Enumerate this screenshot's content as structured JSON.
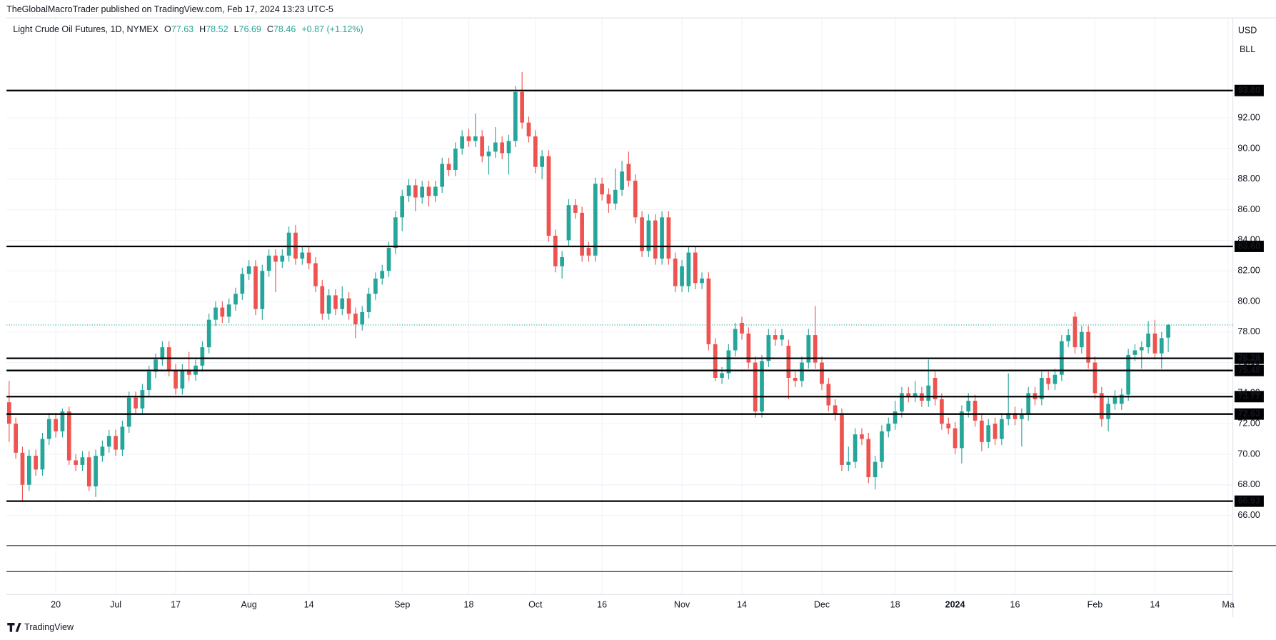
{
  "header": {
    "publisher": "TheGlobalMacroTrader published on TradingView.com, Feb 17, 2024 13:23 UTC-5",
    "currency": "USD",
    "unit": "BLL",
    "footer": "TradingView"
  },
  "chart_data": {
    "type": "candlestick",
    "symbol": "Light Crude Oil Futures, 1D, NYMEX",
    "legend_labels": [
      "O",
      "H",
      "L",
      "C"
    ],
    "change_label": "+0.87 (+1.12%)",
    "up_color": "#26a69a",
    "down_color": "#ef5350",
    "level_color": "#000000",
    "ylim": [
      60.83,
      98.55
    ],
    "yticks": [
      {
        "value": 66,
        "label": "66.00"
      },
      {
        "value": 68,
        "label": "68.00"
      },
      {
        "value": 70,
        "label": "70.00"
      },
      {
        "value": 72,
        "label": "72.00"
      },
      {
        "value": 74,
        "label": "74.00"
      },
      {
        "value": 76,
        "label": "76.00"
      },
      {
        "value": 78,
        "label": "78.00"
      },
      {
        "value": 80,
        "label": "80.00"
      },
      {
        "value": 82,
        "label": "82.00"
      },
      {
        "value": 84,
        "label": "84.00"
      },
      {
        "value": 86,
        "label": "86.00"
      },
      {
        "value": 88,
        "label": "88.00"
      },
      {
        "value": 90,
        "label": "90.00"
      },
      {
        "value": 92,
        "label": "92.00"
      }
    ],
    "xlim": [
      -0.15,
      183.7
    ],
    "xticks": [
      {
        "value": 7,
        "label": "20"
      },
      {
        "value": 16,
        "label": "Jul"
      },
      {
        "value": 25,
        "label": "17"
      },
      {
        "value": 36,
        "label": "Aug"
      },
      {
        "value": 45,
        "label": "14"
      },
      {
        "value": 59,
        "label": "Sep"
      },
      {
        "value": 69,
        "label": "18"
      },
      {
        "value": 79,
        "label": "Oct"
      },
      {
        "value": 89,
        "label": "16"
      },
      {
        "value": 101,
        "label": "Nov"
      },
      {
        "value": 110,
        "label": "14"
      },
      {
        "value": 122,
        "label": "Dec"
      },
      {
        "value": 133,
        "label": "18"
      },
      {
        "value": 142,
        "label": "2024"
      },
      {
        "value": 151,
        "label": "16"
      },
      {
        "value": 163,
        "label": "Feb"
      },
      {
        "value": 172,
        "label": "14"
      },
      {
        "value": 183,
        "label": "Ma"
      }
    ],
    "levels": [
      {
        "value": 93.8,
        "label": "93.80"
      },
      {
        "value": 83.6,
        "label": "83.60"
      },
      {
        "value": 76.28,
        "label": "76.28"
      },
      {
        "value": 75.48,
        "label": "75.48"
      },
      {
        "value": 73.77,
        "label": "73.77"
      },
      {
        "value": 72.63,
        "label": "72.63"
      },
      {
        "value": 66.93,
        "label": "66.93"
      }
    ],
    "grid": true,
    "values": [
      [
        73.4,
        74.8,
        70.8,
        72.0
      ],
      [
        72.0,
        72.4,
        69.7,
        70.1
      ],
      [
        70.1,
        70.5,
        66.9,
        68.0
      ],
      [
        68.0,
        70.3,
        67.6,
        69.9
      ],
      [
        69.9,
        70.3,
        68.6,
        69.0
      ],
      [
        69.0,
        71.4,
        68.6,
        71.0
      ],
      [
        71.0,
        72.7,
        70.6,
        72.3
      ],
      [
        72.3,
        72.7,
        71.1,
        71.5
      ],
      [
        71.5,
        73.0,
        71.1,
        72.8
      ],
      [
        72.8,
        73.1,
        69.3,
        69.6
      ],
      [
        69.6,
        70.0,
        68.9,
        69.3
      ],
      [
        69.3,
        70.2,
        68.9,
        69.8
      ],
      [
        69.8,
        70.2,
        67.6,
        67.9
      ],
      [
        67.9,
        70.3,
        67.2,
        69.9
      ],
      [
        69.9,
        70.9,
        69.5,
        70.5
      ],
      [
        70.5,
        71.6,
        70.1,
        71.2
      ],
      [
        71.2,
        71.6,
        69.9,
        70.3
      ],
      [
        70.3,
        72.2,
        69.9,
        71.8
      ],
      [
        71.8,
        74.1,
        71.4,
        73.7
      ],
      [
        73.7,
        74.1,
        72.6,
        73.0
      ],
      [
        73.0,
        74.6,
        72.6,
        74.2
      ],
      [
        74.2,
        75.8,
        73.8,
        75.4
      ],
      [
        75.4,
        76.6,
        75.0,
        76.2
      ],
      [
        76.2,
        77.4,
        75.8,
        77.0
      ],
      [
        77.0,
        77.4,
        75.1,
        75.5
      ],
      [
        75.5,
        75.9,
        73.9,
        74.3
      ],
      [
        74.3,
        75.9,
        73.9,
        75.5
      ],
      [
        75.5,
        76.7,
        74.8,
        75.2
      ],
      [
        75.2,
        76.2,
        74.8,
        75.8
      ],
      [
        75.8,
        77.4,
        75.4,
        77.0
      ],
      [
        77.0,
        79.2,
        76.6,
        78.8
      ],
      [
        78.8,
        80.0,
        78.4,
        79.6
      ],
      [
        79.6,
        80.0,
        78.6,
        79.0
      ],
      [
        79.0,
        80.2,
        78.6,
        79.8
      ],
      [
        79.8,
        80.9,
        79.4,
        80.5
      ],
      [
        80.5,
        82.2,
        80.1,
        81.8
      ],
      [
        81.8,
        82.7,
        81.4,
        82.3
      ],
      [
        82.3,
        82.7,
        79.1,
        79.5
      ],
      [
        79.5,
        82.4,
        78.8,
        82.0
      ],
      [
        82.0,
        83.4,
        81.6,
        83.0
      ],
      [
        83.0,
        83.4,
        80.6,
        82.6
      ],
      [
        82.6,
        83.4,
        82.2,
        83.0
      ],
      [
        83.0,
        84.9,
        82.6,
        84.5
      ],
      [
        84.5,
        85.0,
        82.4,
        82.8
      ],
      [
        82.8,
        83.6,
        82.4,
        83.2
      ],
      [
        83.2,
        83.6,
        82.1,
        82.5
      ],
      [
        82.5,
        82.9,
        80.6,
        81.0
      ],
      [
        81.0,
        81.4,
        78.8,
        79.2
      ],
      [
        79.2,
        80.8,
        78.8,
        80.4
      ],
      [
        80.4,
        80.8,
        79.1,
        79.5
      ],
      [
        79.5,
        81.0,
        79.1,
        80.2
      ],
      [
        80.2,
        80.6,
        78.8,
        79.2
      ],
      [
        79.2,
        79.6,
        77.6,
        78.5
      ],
      [
        78.5,
        79.7,
        78.1,
        79.3
      ],
      [
        79.3,
        80.9,
        78.9,
        80.5
      ],
      [
        80.5,
        81.9,
        80.1,
        81.5
      ],
      [
        81.5,
        82.4,
        81.1,
        82.0
      ],
      [
        82.0,
        83.9,
        81.6,
        83.5
      ],
      [
        83.5,
        85.9,
        83.1,
        85.5
      ],
      [
        85.5,
        87.3,
        84.6,
        86.9
      ],
      [
        86.9,
        88.0,
        86.5,
        87.6
      ],
      [
        87.6,
        88.0,
        85.9,
        86.8
      ],
      [
        86.8,
        87.9,
        86.4,
        87.5
      ],
      [
        87.5,
        87.9,
        86.2,
        86.9
      ],
      [
        86.9,
        87.9,
        86.5,
        87.5
      ],
      [
        87.5,
        89.4,
        87.1,
        89.0
      ],
      [
        89.0,
        89.4,
        88.2,
        88.6
      ],
      [
        88.6,
        90.4,
        88.2,
        90.0
      ],
      [
        90.0,
        91.2,
        89.6,
        90.8
      ],
      [
        90.8,
        91.3,
        90.1,
        90.5
      ],
      [
        90.5,
        92.3,
        90.1,
        90.8
      ],
      [
        90.8,
        91.2,
        89.1,
        89.5
      ],
      [
        89.5,
        90.2,
        88.3,
        89.8
      ],
      [
        89.8,
        91.4,
        89.4,
        90.4
      ],
      [
        90.4,
        90.8,
        89.3,
        89.7
      ],
      [
        89.7,
        90.9,
        88.3,
        90.5
      ],
      [
        90.5,
        94.1,
        90.1,
        93.7
      ],
      [
        93.7,
        95.0,
        91.3,
        91.7
      ],
      [
        91.7,
        92.1,
        90.4,
        90.8
      ],
      [
        90.8,
        91.2,
        88.4,
        88.8
      ],
      [
        88.8,
        89.9,
        88.0,
        89.5
      ],
      [
        89.5,
        89.9,
        83.9,
        84.3
      ],
      [
        84.3,
        84.7,
        81.9,
        82.3
      ],
      [
        82.3,
        83.3,
        81.5,
        82.9
      ],
      [
        84.0,
        86.7,
        83.6,
        86.3
      ],
      [
        86.3,
        86.7,
        85.4,
        85.8
      ],
      [
        85.8,
        86.2,
        82.6,
        83.0
      ],
      [
        83.5,
        83.9,
        82.6,
        83.0
      ],
      [
        83.0,
        88.1,
        82.6,
        87.7
      ],
      [
        87.7,
        88.1,
        86.6,
        87.0
      ],
      [
        87.0,
        87.4,
        85.8,
        86.4
      ],
      [
        86.4,
        88.7,
        86.0,
        87.3
      ],
      [
        87.3,
        89.2,
        86.9,
        88.5
      ],
      [
        89.0,
        89.8,
        87.5,
        87.9
      ],
      [
        87.9,
        88.3,
        85.1,
        85.5
      ],
      [
        85.5,
        85.9,
        82.9,
        83.3
      ],
      [
        83.3,
        85.7,
        82.9,
        85.3
      ],
      [
        85.3,
        85.7,
        82.4,
        82.8
      ],
      [
        82.8,
        85.9,
        82.4,
        85.5
      ],
      [
        85.5,
        85.9,
        82.4,
        82.8
      ],
      [
        82.8,
        83.2,
        80.6,
        81.0
      ],
      [
        81.0,
        82.7,
        80.6,
        82.3
      ],
      [
        81.0,
        83.6,
        80.6,
        83.2
      ],
      [
        83.2,
        83.6,
        80.8,
        81.2
      ],
      [
        81.2,
        81.9,
        80.8,
        81.5
      ],
      [
        81.5,
        81.9,
        76.8,
        77.2
      ],
      [
        77.2,
        77.6,
        74.8,
        75.0
      ],
      [
        75.0,
        75.7,
        74.6,
        75.3
      ],
      [
        75.3,
        77.2,
        74.9,
        76.8
      ],
      [
        76.8,
        78.6,
        76.4,
        78.2
      ],
      [
        78.6,
        79.0,
        77.5,
        77.9
      ],
      [
        77.9,
        78.3,
        75.6,
        76.0
      ],
      [
        76.0,
        76.4,
        72.4,
        72.8
      ],
      [
        72.8,
        76.5,
        72.4,
        76.1
      ],
      [
        76.1,
        78.2,
        75.7,
        77.8
      ],
      [
        77.8,
        78.2,
        77.1,
        77.5
      ],
      [
        77.5,
        78.2,
        77.1,
        77.8
      ],
      [
        77.1,
        77.5,
        73.6,
        75.0
      ],
      [
        75.0,
        75.4,
        74.4,
        74.8
      ],
      [
        74.8,
        76.4,
        74.4,
        76.0
      ],
      [
        76.0,
        78.2,
        75.6,
        77.8
      ],
      [
        77.8,
        79.7,
        75.6,
        76.0
      ],
      [
        76.0,
        76.4,
        74.2,
        74.6
      ],
      [
        74.6,
        75.0,
        72.8,
        73.2
      ],
      [
        73.2,
        73.6,
        72.2,
        72.6
      ],
      [
        72.6,
        73.0,
        68.9,
        69.3
      ],
      [
        69.3,
        70.5,
        68.9,
        69.5
      ],
      [
        69.5,
        71.7,
        69.1,
        71.3
      ],
      [
        71.3,
        71.7,
        70.6,
        71.0
      ],
      [
        71.0,
        71.4,
        68.1,
        68.5
      ],
      [
        68.5,
        69.9,
        67.7,
        69.5
      ],
      [
        69.5,
        71.9,
        69.1,
        71.5
      ],
      [
        71.5,
        72.4,
        71.1,
        72.0
      ],
      [
        72.0,
        73.5,
        71.6,
        72.8
      ],
      [
        72.8,
        74.4,
        72.4,
        74.0
      ],
      [
        74.0,
        74.4,
        73.4,
        73.8
      ],
      [
        73.8,
        74.8,
        73.4,
        74.0
      ],
      [
        74.0,
        74.4,
        73.1,
        73.5
      ],
      [
        73.5,
        76.2,
        73.1,
        74.5
      ],
      [
        75.0,
        75.4,
        73.2,
        73.6
      ],
      [
        73.6,
        74.0,
        71.6,
        72.0
      ],
      [
        72.0,
        72.4,
        71.3,
        71.7
      ],
      [
        71.7,
        72.1,
        70.0,
        70.4
      ],
      [
        70.4,
        73.2,
        69.4,
        72.8
      ],
      [
        72.8,
        74.0,
        72.4,
        73.5
      ],
      [
        73.5,
        73.9,
        71.8,
        72.2
      ],
      [
        72.2,
        72.6,
        70.2,
        70.8
      ],
      [
        70.8,
        72.3,
        70.4,
        71.9
      ],
      [
        72.0,
        72.4,
        70.6,
        71.0
      ],
      [
        71.0,
        72.7,
        70.6,
        72.3
      ],
      [
        72.3,
        75.3,
        71.9,
        72.7
      ],
      [
        72.7,
        73.1,
        71.9,
        72.3
      ],
      [
        72.3,
        73.0,
        70.5,
        72.6
      ],
      [
        72.6,
        74.4,
        72.2,
        74.0
      ],
      [
        74.0,
        74.4,
        73.2,
        73.6
      ],
      [
        73.6,
        75.4,
        73.2,
        75.0
      ],
      [
        75.0,
        75.4,
        74.2,
        74.6
      ],
      [
        74.6,
        75.6,
        74.2,
        75.2
      ],
      [
        75.2,
        77.8,
        74.8,
        77.4
      ],
      [
        77.4,
        78.2,
        77.0,
        77.8
      ],
      [
        79.0,
        79.3,
        76.6,
        77.0
      ],
      [
        77.0,
        78.4,
        76.6,
        78.0
      ],
      [
        78.0,
        78.4,
        75.6,
        76.0
      ],
      [
        76.0,
        76.4,
        73.6,
        74.0
      ],
      [
        74.0,
        74.4,
        71.8,
        72.3
      ],
      [
        72.3,
        73.7,
        71.5,
        73.3
      ],
      [
        73.3,
        74.2,
        72.9,
        73.8
      ],
      [
        73.3,
        74.3,
        72.9,
        73.9
      ],
      [
        73.9,
        76.9,
        73.5,
        76.5
      ],
      [
        76.5,
        77.2,
        76.1,
        76.8
      ],
      [
        76.8,
        77.4,
        75.6,
        77.0
      ],
      [
        77.0,
        78.7,
        76.6,
        77.9
      ],
      [
        77.9,
        78.8,
        76.2,
        76.6
      ],
      [
        76.6,
        78.0,
        75.6,
        77.6
      ],
      [
        77.63,
        78.52,
        76.69,
        78.46
      ]
    ]
  }
}
